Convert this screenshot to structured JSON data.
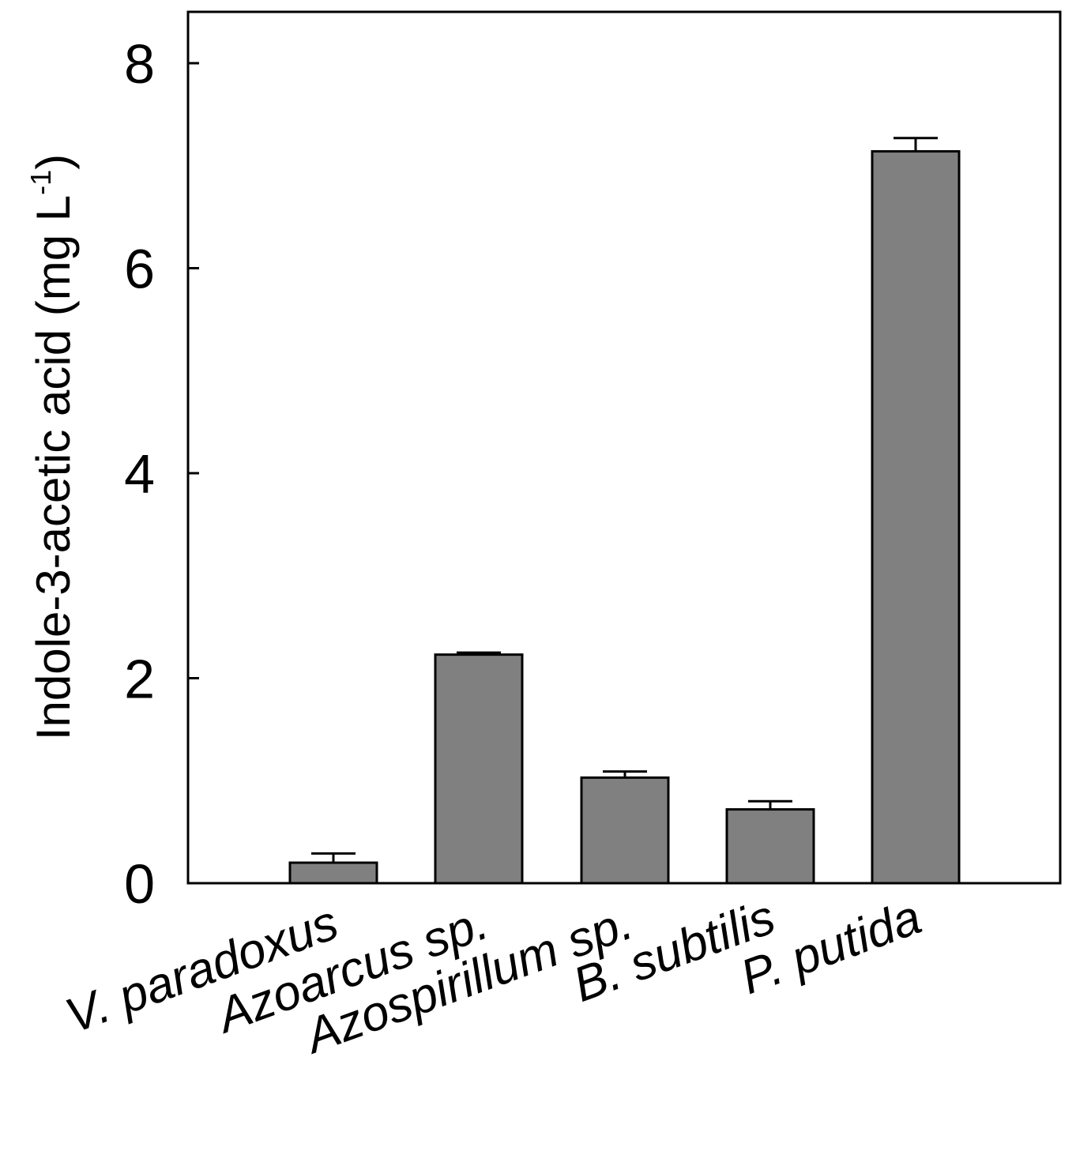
{
  "chart_data": {
    "type": "bar",
    "categories": [
      "V. paradoxus",
      "Azoarcus sp.",
      "Azospirillum sp.",
      "B. subtilis",
      "P. putida"
    ],
    "values": [
      0.2,
      2.23,
      1.03,
      0.72,
      7.14
    ],
    "errors": [
      0.09,
      0.02,
      0.06,
      0.08,
      0.13
    ],
    "title": "",
    "xlabel": "",
    "ylabel": "Indole-3-acetic acid (mg L",
    "ylabel_superscript": "-1",
    "ylabel_suffix": ")",
    "ylim": [
      0,
      8.5
    ],
    "yticks": [
      "0",
      "2",
      "4",
      "6",
      "8"
    ],
    "ytick_values": [
      0,
      2,
      4,
      6,
      8
    ],
    "grid": false,
    "legend": "none",
    "bar_color": "#808080"
  }
}
